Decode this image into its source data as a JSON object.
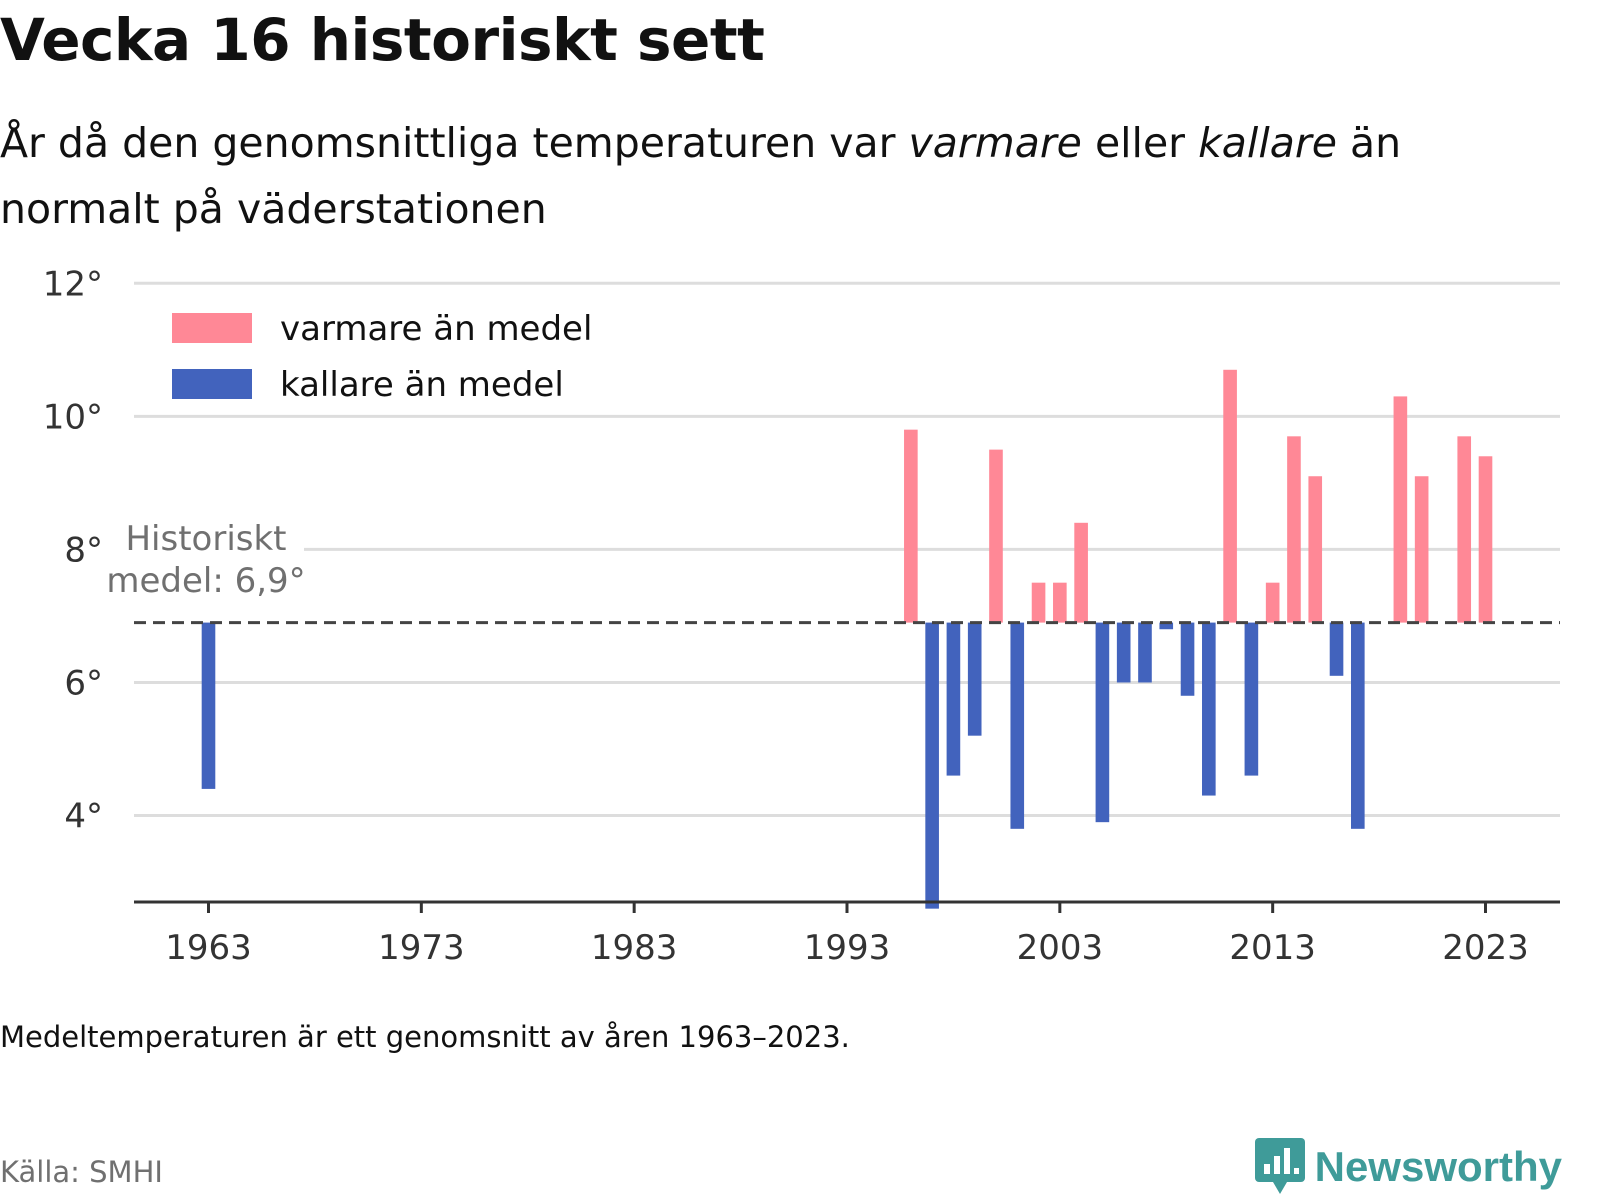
{
  "title": "Vecka 16 historiskt sett",
  "subtitle": {
    "part1": "År då den genomsnittliga temperaturen var ",
    "emph1": "varmare",
    "part2": " eller ",
    "emph2": "kallare",
    "part3": " än normalt på väderstationen"
  },
  "footnote": "Medeltemperaturen är ett genomsnitt av åren 1963–2023.",
  "source": "Källa: SMHI",
  "brand": {
    "name": "Newsworthy",
    "icon": "newsworthy-logo-icon"
  },
  "colors": {
    "warmer": "#ff8896",
    "colder": "#4263bd",
    "grid": "#dddddd",
    "axis": "#333333",
    "mean_line": "#444444",
    "annotation": "#707070",
    "brand": "#3f9b99"
  },
  "chart_data": {
    "type": "bar",
    "baseline": 6.9,
    "baseline_label_line1": "Historiskt",
    "baseline_label_line2": "medel: 6,9°",
    "ylim": [
      2.7,
      12.2
    ],
    "xlim": [
      1959.5,
      2026.5
    ],
    "y_ticks": [
      4,
      6,
      8,
      10,
      12
    ],
    "y_tick_labels": [
      "4°",
      "6°",
      "8°",
      "10°",
      "12°"
    ],
    "x_ticks": [
      1963,
      1973,
      1983,
      1993,
      2003,
      2013,
      2023
    ],
    "x_tick_labels": [
      "1963",
      "1973",
      "1983",
      "1993",
      "2003",
      "2013",
      "2023"
    ],
    "legend_position": "top-left",
    "series": [
      {
        "name": "varmare än medel",
        "color": "#ff8896"
      },
      {
        "name": "kallare än medel",
        "color": "#4263bd"
      }
    ],
    "years": [
      1963,
      1996,
      1997,
      1998,
      1999,
      2000,
      2001,
      2002,
      2003,
      2004,
      2005,
      2006,
      2007,
      2008,
      2009,
      2010,
      2011,
      2012,
      2013,
      2014,
      2015,
      2016,
      2017,
      2019,
      2020,
      2022,
      2023
    ],
    "values": [
      4.4,
      9.8,
      2.6,
      4.6,
      5.2,
      9.5,
      3.8,
      7.5,
      7.5,
      8.4,
      3.9,
      6.0,
      6.0,
      6.8,
      5.8,
      4.3,
      10.7,
      4.6,
      7.5,
      9.7,
      9.1,
      6.1,
      3.8,
      10.3,
      9.1,
      9.7,
      9.4
    ]
  }
}
